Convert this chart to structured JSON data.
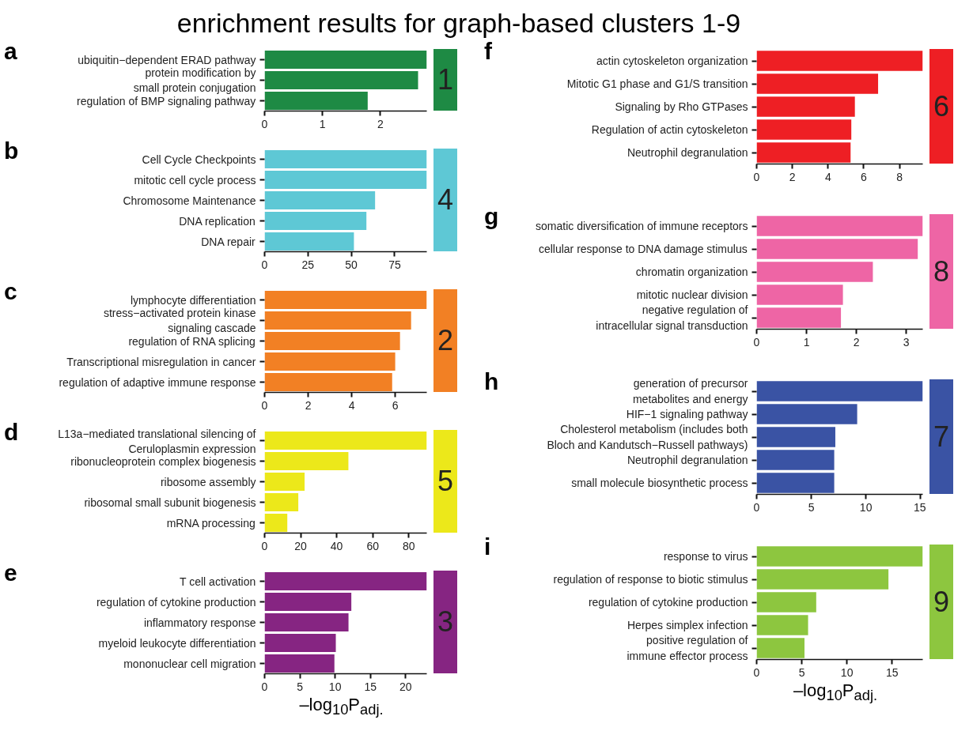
{
  "chart_data": [
    {
      "type": "bar",
      "orientation": "horizontal",
      "title": "a",
      "annotations": [
        "1",
        "enrichment results for graph-based clusters 1-9"
      ],
      "color": "#1e8a44",
      "categories": [
        "ubiquitin−dependent ERAD pathway",
        "protein modification by\nsmall protein conjugation",
        "regulation of BMP signaling pathway"
      ],
      "values": [
        2.8,
        2.65,
        1.78
      ],
      "xlim": [
        0,
        2.8
      ],
      "xticks": [
        0,
        1,
        2
      ]
    },
    {
      "type": "bar",
      "orientation": "horizontal",
      "title": "b",
      "annotations": [
        "4"
      ],
      "color": "#5ec8d5",
      "categories": [
        "Cell Cycle Checkpoints",
        "mitotic cell cycle process",
        "Chromosome Maintenance",
        "DNA replication",
        "DNA repair"
      ],
      "values": [
        93.5,
        93.5,
        63.7,
        58.7,
        51.5
      ],
      "xlim": [
        0,
        93.5
      ],
      "xticks": [
        0,
        25,
        50,
        75
      ]
    },
    {
      "type": "bar",
      "orientation": "horizontal",
      "title": "c",
      "annotations": [
        "2"
      ],
      "color": "#f28024",
      "categories": [
        "lymphocyte differentiation",
        "stress−activated protein kinase\nsignaling cascade",
        "regulation of RNA splicing",
        "Transcriptional misregulation in cancer",
        "regulation of adaptive immune response"
      ],
      "values": [
        7.45,
        6.73,
        6.22,
        6.0,
        5.86
      ],
      "xlim": [
        0,
        7.45
      ],
      "xticks": [
        0,
        2,
        4,
        6
      ]
    },
    {
      "type": "bar",
      "orientation": "horizontal",
      "title": "d",
      "annotations": [
        "5"
      ],
      "color": "#ece81a",
      "categories": [
        "L13a−mediated translational silencing of\nCeruloplasmin expression",
        "ribonucleoprotein complex biogenesis",
        "ribosome assembly",
        "ribosomal small subunit biogenesis",
        "mRNA processing"
      ],
      "values": [
        90,
        46.5,
        22.2,
        18.7,
        12.6
      ],
      "xlim": [
        0,
        90
      ],
      "xticks": [
        0,
        20,
        40,
        60,
        80
      ]
    },
    {
      "type": "bar",
      "orientation": "horizontal",
      "title": "e",
      "annotations": [
        "3"
      ],
      "xlabel": "–log$_{10}$P$_{adj.}$",
      "color": "#862582",
      "categories": [
        "T cell activation",
        "regulation of cytokine production",
        "inflammatory response",
        "myeloid leukocyte differentiation",
        "mononuclear cell migration"
      ],
      "values": [
        23,
        12.3,
        11.9,
        10.1,
        9.9
      ],
      "xlim": [
        0,
        23
      ],
      "xticks": [
        0,
        5,
        10,
        15,
        20
      ]
    },
    {
      "type": "bar",
      "orientation": "horizontal",
      "title": "f",
      "annotations": [
        "6"
      ],
      "color": "#ee1f24",
      "categories": [
        "actin cytoskeleton organization",
        "Mitotic G1 phase and G1/S transition",
        "Signaling by Rho GTPases",
        "Regulation of actin cytoskeleton",
        "Neutrophil degranulation"
      ],
      "values": [
        9.3,
        6.8,
        5.5,
        5.3,
        5.26
      ],
      "xlim": [
        0,
        9.3
      ],
      "xticks": [
        0,
        2,
        4,
        6,
        8
      ]
    },
    {
      "type": "bar",
      "orientation": "horizontal",
      "title": "g",
      "annotations": [
        "8"
      ],
      "color": "#ee65a5",
      "categories": [
        "somatic diversification of immune receptors",
        "cellular response to DNA damage stimulus",
        "chromatin organization",
        "mitotic nuclear division",
        "negative regulation of\nintracellular signal transduction"
      ],
      "values": [
        3.33,
        3.23,
        2.33,
        1.73,
        1.69
      ],
      "xlim": [
        0,
        3.33
      ],
      "xticks": [
        0,
        1,
        2,
        3
      ]
    },
    {
      "type": "bar",
      "orientation": "horizontal",
      "title": "h",
      "annotations": [
        "7"
      ],
      "color": "#3a53a4",
      "categories": [
        "generation of precursor\nmetabolites and energy",
        "HIF−1 signaling pathway",
        "Cholesterol metabolism (includes both\nBloch and Kandutsch−Russell pathways)",
        "Neutrophil degranulation",
        "small molecule biosynthetic process"
      ],
      "values": [
        15.2,
        9.2,
        7.2,
        7.1,
        7.1
      ],
      "xlim": [
        0,
        15.2
      ],
      "xticks": [
        0,
        5,
        10,
        15
      ]
    },
    {
      "type": "bar",
      "orientation": "horizontal",
      "title": "i",
      "annotations": [
        "9"
      ],
      "xlabel": "–log$_{10}$P$_{adj.}$",
      "color": "#8dc63f",
      "categories": [
        "response to virus",
        "regulation of response to biotic stimulus",
        "regulation of cytokine production",
        "Herpes simplex infection",
        "positive regulation of\nimmune effector process"
      ],
      "values": [
        18.4,
        14.6,
        6.6,
        5.7,
        5.3
      ],
      "xlim": [
        0,
        18.4
      ],
      "xticks": [
        0,
        5,
        10,
        15
      ]
    }
  ]
}
